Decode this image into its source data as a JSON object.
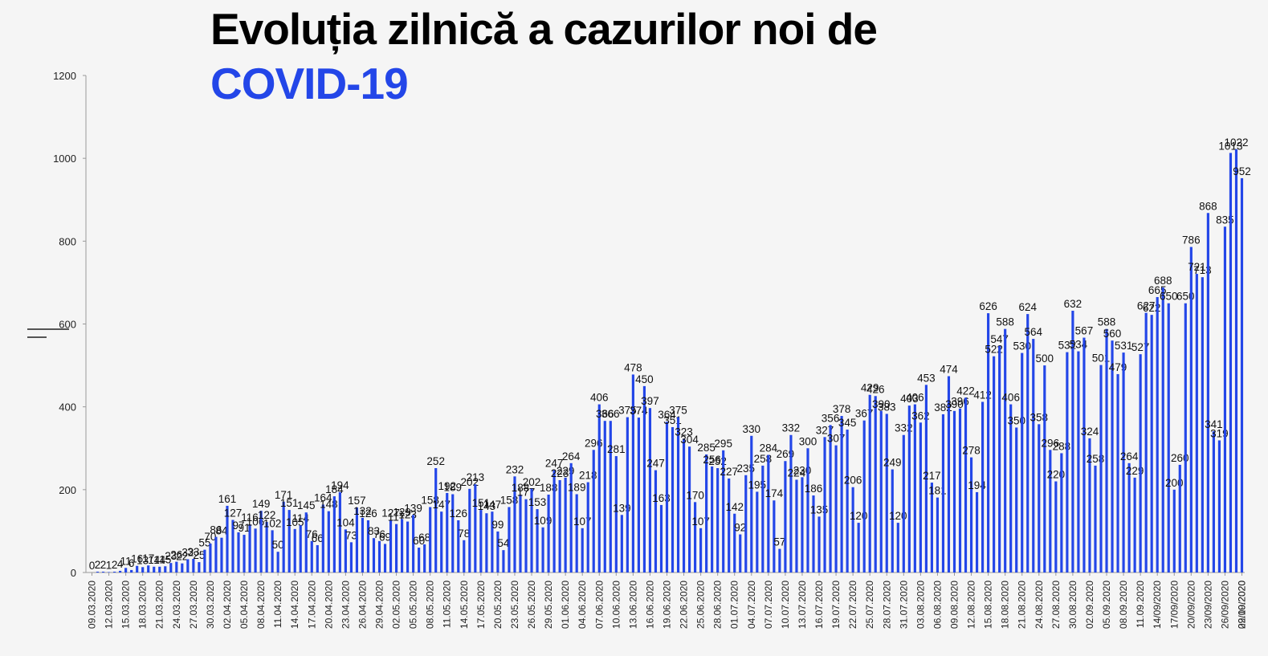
{
  "colors": {
    "bar": "#2346e8",
    "title_main": "#000000",
    "title_accent": "#2346e8",
    "axis": "#999999"
  },
  "title": {
    "line1": "Evoluția zilnică a cazurilor noi de",
    "line2": "COVID-19"
  },
  "chart_data": {
    "type": "bar",
    "title": "Evoluția zilnică a cazurilor noi de COVID-19",
    "ylim": [
      0,
      1200
    ],
    "yticks": [
      0,
      200,
      400,
      600,
      800,
      1000,
      1200
    ],
    "grid": false,
    "xtick_labels": [
      "09.03.2020",
      "12.03.2020",
      "15.03.2020",
      "18.03.2020",
      "21.03.2020",
      "24.03.2020",
      "27.03.2020",
      "30.03.2020",
      "02.04.2020",
      "05.04.2020",
      "08.04.2020",
      "11.04.2020",
      "14.04.2020",
      "17.04.2020",
      "20.04.2020",
      "23.04.2020",
      "26.04.2020",
      "29.04.2020",
      "02.05.2020",
      "05.05.2020",
      "08.05.2020",
      "11.05.2020",
      "14.05.2020",
      "17.05.2020",
      "20.05.2020",
      "23.05.2020",
      "26.05.2020",
      "29.05.2020",
      "01.06.2020",
      "04.06.2020",
      "07.06.2020",
      "10.06.2020",
      "13.06.2020",
      "16.06.2020",
      "19.06.2020",
      "22.06.2020",
      "25.06.2020",
      "28.06.2020",
      "01.07.2020",
      "04.07.2020",
      "07.07.2020",
      "10.07.2020",
      "13.07.2020",
      "16.07.2020",
      "19.07.2020",
      "22.07.2020",
      "25.07.2020",
      "28.07.2020",
      "31.07.2020",
      "03.08.2020",
      "06.08.2020",
      "09.08.2020",
      "12.08.2020",
      "15.08.2020",
      "18.08.2020",
      "21.08.2020",
      "24.08.2020",
      "27.08.2020",
      "30.08.2020",
      "02.09.2020",
      "05.09.2020",
      "08.09.2020",
      "11.09.2020",
      "14/09/2020",
      "17/09/2020",
      "20/09/2020",
      "23/09/2020",
      "26/09/2020",
      "29/09/2020",
      "02.10.2020"
    ],
    "values": [
      0,
      2,
      2,
      1,
      2,
      4,
      11,
      6,
      16,
      13,
      17,
      14,
      14,
      15,
      23,
      26,
      22,
      32,
      33,
      25,
      55,
      70,
      86,
      84,
      161,
      127,
      97,
      91,
      116,
      106,
      149,
      122,
      102,
      50,
      171,
      151,
      105,
      114,
      145,
      76,
      66,
      164,
      148,
      184,
      194,
      104,
      73,
      157,
      132,
      126,
      83,
      76,
      69,
      127,
      117,
      129,
      123,
      139,
      60,
      68,
      158,
      252,
      147,
      192,
      189,
      126,
      78,
      202,
      213,
      151,
      143,
      147,
      99,
      54,
      158,
      232,
      188,
      177,
      202,
      153,
      109,
      188,
      247,
      223,
      229,
      264,
      189,
      107,
      218,
      296,
      406,
      366,
      366,
      281,
      139,
      375,
      478,
      374,
      450,
      397,
      247,
      163,
      364,
      351,
      375,
      323,
      304,
      170,
      107,
      285,
      256,
      252,
      295,
      227,
      142,
      92,
      235,
      330,
      195,
      258,
      284,
      174,
      57,
      269,
      332,
      224,
      230,
      300,
      186,
      135,
      327,
      356,
      307,
      378,
      345,
      206,
      120,
      367,
      429,
      426,
      390,
      383,
      249,
      120,
      332,
      403,
      406,
      362,
      453,
      217,
      181,
      382,
      474,
      390,
      396,
      422,
      278,
      194,
      412,
      626,
      522,
      547,
      588,
      406,
      350,
      530,
      624,
      564,
      358,
      500,
      296,
      220,
      288,
      532,
      632,
      534,
      567,
      324,
      258,
      501,
      588,
      560,
      479,
      531,
      264,
      229,
      527,
      627,
      622,
      665,
      688,
      650,
      200,
      260,
      650,
      786,
      721,
      713,
      868,
      341,
      319,
      835,
      1013,
      1022,
      952
    ]
  }
}
